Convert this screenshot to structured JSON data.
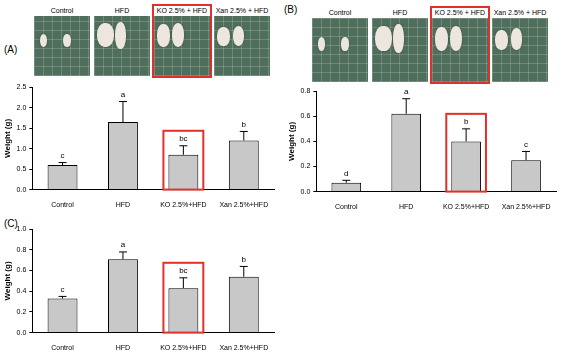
{
  "chart_data": [
    {
      "panel": "(A)",
      "type": "bar",
      "photo_labels": [
        "Control",
        "HFD",
        "KO 2.5% + HFD",
        "Xan 2.5% + HFD"
      ],
      "photo_highlight": "KO 2.5% + HFD",
      "categories": [
        "Control",
        "HFD",
        "KO 2.5%+HFD",
        "Xan 2.5%+HFD"
      ],
      "values": [
        0.6,
        1.65,
        0.85,
        1.2
      ],
      "errors": [
        0.06,
        0.5,
        0.22,
        0.22
      ],
      "letters": [
        "c",
        "a",
        "bc",
        "b"
      ],
      "highlight": {
        "category": "KO 2.5%+HFD",
        "color": "#e0302a"
      },
      "color": "#c8c8c8",
      "y_label": "Weight (g)",
      "ylim": [
        0,
        2.5
      ],
      "yticks": [
        {
          "value": 0,
          "label": "0.0"
        },
        0.5,
        {
          "value": 1,
          "label": "1.0"
        },
        1.5,
        {
          "value": 2,
          "label": "2.0"
        },
        2.5
      ],
      "grid": false
    },
    {
      "panel": "(B)",
      "type": "bar",
      "photo_labels": [
        "Control",
        "HFD",
        "KO 2.5% + HFD",
        "Xan 2.5% + HFD"
      ],
      "photo_highlight": "KO 2.5% + HFD",
      "categories": [
        "Control",
        "HFD",
        "KO 2.5%+HFD",
        "Xan 2.5%+HFD"
      ],
      "values": [
        0.07,
        0.62,
        0.4,
        0.25
      ],
      "errors": [
        0.02,
        0.12,
        0.1,
        0.07
      ],
      "letters": [
        "d",
        "a",
        "b",
        "c"
      ],
      "highlight": {
        "category": "KO 2.5%+HFD",
        "color": "#e0302a"
      },
      "color": "#c8c8c8",
      "y_label": "Weight (g)",
      "ylim": [
        0,
        0.8
      ],
      "yticks": [
        {
          "value": 0,
          "label": "0.0"
        },
        0.2,
        0.4,
        0.6,
        0.8
      ],
      "grid": false
    },
    {
      "panel": "(C)",
      "type": "bar",
      "categories": [
        "Control",
        "HFD",
        "KO 2.5%+HFD",
        "Xan 2.5%+HFD"
      ],
      "values": [
        0.33,
        0.71,
        0.43,
        0.54
      ],
      "errors": [
        0.02,
        0.07,
        0.1,
        0.1
      ],
      "letters": [
        "c",
        "a",
        "bc",
        "b"
      ],
      "highlight": {
        "category": "KO 2.5%+HFD",
        "color": "#e0302a"
      },
      "color": "#c8c8c8",
      "y_label": "Weight (g)",
      "ylim": [
        0,
        1.0
      ],
      "yticks": [
        {
          "value": 0,
          "label": "0.0"
        },
        0.2,
        0.4,
        0.6,
        0.8,
        {
          "value": 1.0,
          "label": "1.0"
        }
      ],
      "grid": false
    }
  ]
}
